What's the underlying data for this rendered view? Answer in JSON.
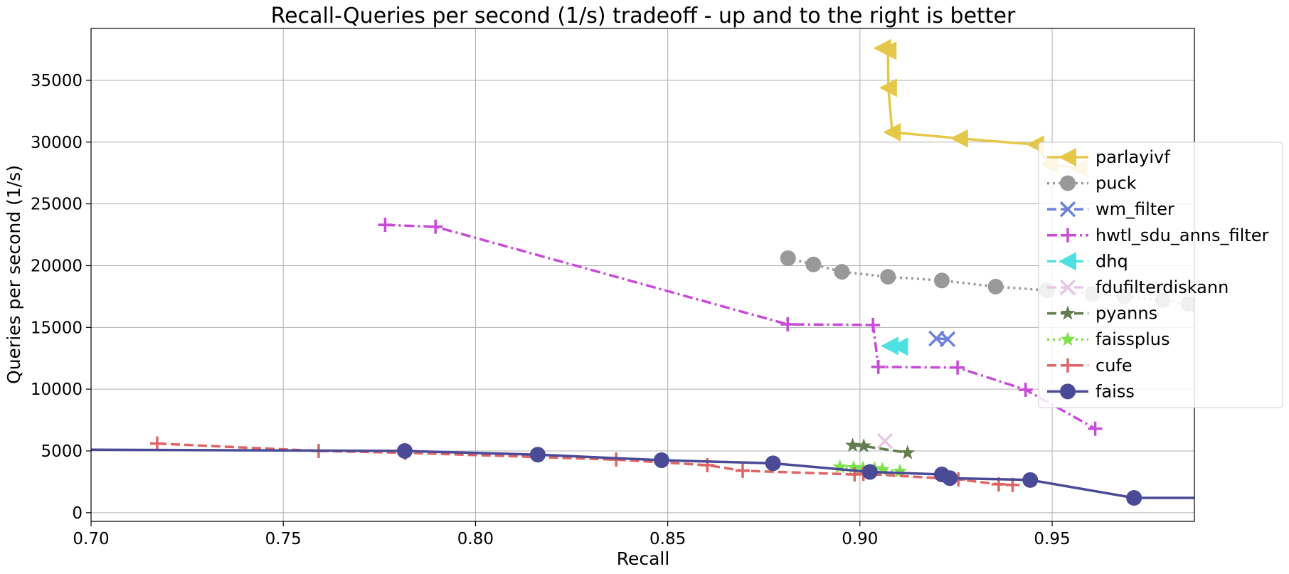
{
  "chart_data": {
    "type": "line",
    "title": "Recall-Queries per second (1/s) tradeoff - up and to the right is better",
    "xlabel": "Recall",
    "ylabel": "Queries per second (1/s)",
    "xlim": [
      0.7,
      0.987
    ],
    "ylim": [
      -700,
      39200
    ],
    "xticks": [
      0.7,
      0.75,
      0.8,
      0.85,
      0.9,
      0.95
    ],
    "xtick_labels": [
      "0.70",
      "0.75",
      "0.80",
      "0.85",
      "0.90",
      "0.95"
    ],
    "yticks": [
      0,
      5000,
      10000,
      15000,
      20000,
      25000,
      30000,
      35000
    ],
    "ytick_labels": [
      "0",
      "5000",
      "10000",
      "15000",
      "20000",
      "25000",
      "30000",
      "35000"
    ],
    "grid": true,
    "legend_position": "right",
    "series": [
      {
        "name": "parlayivf",
        "color": "#e5c84a",
        "line": "solid",
        "marker": "triangle-left",
        "x": [
          0.9059,
          0.9073,
          0.9074,
          0.9084,
          0.9259,
          0.9457,
          0.9493,
          0.957
        ],
        "y": [
          37600,
          37400,
          34400,
          30800,
          30300,
          29800,
          28200,
          27900
        ]
      },
      {
        "name": "puck",
        "color": "#999999",
        "line": "dotted",
        "marker": "circle",
        "x": [
          0.8813,
          0.8879,
          0.8953,
          0.9073,
          0.9213,
          0.9353,
          0.9486,
          0.9605,
          0.9688,
          0.9788,
          0.9855,
          0.9886
        ],
        "y": [
          20600,
          20100,
          19500,
          19100,
          18800,
          18300,
          18000,
          17700,
          17500,
          17200,
          16900,
          16400
        ]
      },
      {
        "name": "wm_filter",
        "color": "#6a80db",
        "line": "dashed",
        "marker": "x",
        "x": [
          0.9199,
          0.9228
        ],
        "y": [
          14100,
          14050
        ]
      },
      {
        "name": "hwtl_sdu_anns_filter",
        "color": "#c84ad8",
        "line": "dashdot",
        "marker": "plus",
        "x": [
          0.7765,
          0.7896,
          0.8812,
          0.9034,
          0.9048,
          0.9254,
          0.9431,
          0.9612
        ],
        "y": [
          23300,
          23150,
          15250,
          15200,
          11800,
          11750,
          9950,
          6800
        ]
      },
      {
        "name": "dhq",
        "color": "#4ee1e1",
        "line": "dashed",
        "marker": "triangle-left",
        "x": [
          0.9078,
          0.9103
        ],
        "y": [
          13500,
          13450
        ]
      },
      {
        "name": "fdufilterdiskann",
        "color": "#e8c7e6",
        "line": "dashed",
        "marker": "x",
        "x": [
          0.9065
        ],
        "y": [
          5800
        ]
      },
      {
        "name": "pyanns",
        "color": "#647c4e",
        "line": "dashed",
        "marker": "star",
        "x": [
          0.8981,
          0.901,
          0.9124
        ],
        "y": [
          5450,
          5400,
          4850
        ]
      },
      {
        "name": "faissplus",
        "color": "#7ce24a",
        "line": "dotted",
        "marker": "star",
        "x": [
          0.8948,
          0.8984,
          0.9008,
          0.9038,
          0.9058,
          0.9104
        ],
        "y": [
          3700,
          3650,
          3600,
          3550,
          3500,
          3350
        ]
      },
      {
        "name": "cufe",
        "color": "#df6565",
        "line": "dashed",
        "marker": "plus",
        "x": [
          0.7172,
          0.7592,
          0.7817,
          0.8366,
          0.8603,
          0.8695,
          0.8986,
          0.9009,
          0.9256,
          0.9361,
          0.9397
        ],
        "y": [
          5600,
          5000,
          4850,
          4300,
          3850,
          3400,
          3100,
          3150,
          2700,
          2300,
          2250
        ]
      },
      {
        "name": "faiss",
        "color": "#4a4a96",
        "line": "solid",
        "marker": "circle",
        "x": [
          0.6601,
          0.7816,
          0.8162,
          0.8484,
          0.8774,
          0.9026,
          0.9213,
          0.9234,
          0.9443,
          0.9713,
          0.9987
        ],
        "y": [
          5150,
          5000,
          4700,
          4250,
          4000,
          3300,
          3100,
          2800,
          2650,
          1200,
          1200
        ]
      }
    ]
  }
}
